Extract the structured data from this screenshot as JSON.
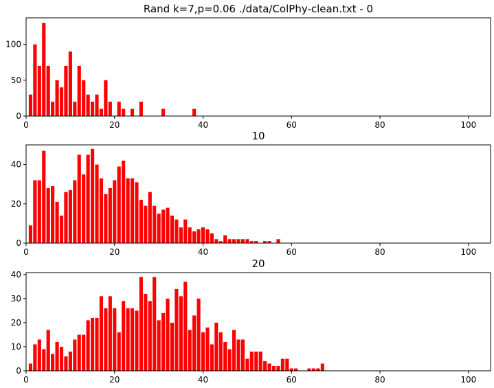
{
  "chart_data": [
    {
      "type": "bar",
      "title": "Rand k=7,p=0.06 ./data/ColPhy-clean.txt - 0",
      "xlabel": "",
      "ylabel": "",
      "xlim": [
        0,
        105
      ],
      "ylim": [
        0,
        137
      ],
      "xticks": [
        0,
        20,
        40,
        60,
        80,
        100
      ],
      "yticks": [
        0,
        50,
        100
      ],
      "bar_color": "#ff0000",
      "x": [
        1,
        2,
        3,
        4,
        5,
        6,
        7,
        8,
        9,
        10,
        11,
        12,
        13,
        14,
        15,
        16,
        17,
        18,
        19,
        20,
        21,
        22,
        23,
        24,
        25,
        26,
        27,
        28,
        29,
        30,
        31,
        32,
        33,
        34,
        35,
        36,
        37,
        38
      ],
      "values": [
        30,
        100,
        70,
        130,
        70,
        20,
        50,
        40,
        70,
        90,
        20,
        70,
        50,
        30,
        20,
        30,
        10,
        50,
        20,
        0,
        20,
        10,
        0,
        10,
        0,
        20,
        0,
        0,
        0,
        0,
        10,
        0,
        0,
        0,
        0,
        0,
        0,
        10
      ]
    },
    {
      "type": "bar",
      "title": "10",
      "xlabel": "",
      "ylabel": "",
      "xlim": [
        0,
        105
      ],
      "ylim": [
        0,
        50
      ],
      "xticks": [
        0,
        20,
        40,
        60,
        80,
        100
      ],
      "yticks": [
        0,
        20,
        40
      ],
      "bar_color": "#ff0000",
      "x": [
        1,
        2,
        3,
        4,
        5,
        6,
        7,
        8,
        9,
        10,
        11,
        12,
        13,
        14,
        15,
        16,
        17,
        18,
        19,
        20,
        21,
        22,
        23,
        24,
        25,
        26,
        27,
        28,
        29,
        30,
        31,
        32,
        33,
        34,
        35,
        36,
        37,
        38,
        39,
        40,
        41,
        42,
        43,
        44,
        45,
        46,
        47,
        48,
        49,
        50,
        51,
        52,
        53,
        54,
        55,
        56,
        57
      ],
      "values": [
        9,
        32,
        32,
        47,
        28,
        29,
        21,
        14,
        26,
        27,
        32,
        45,
        35,
        45,
        48,
        40,
        33,
        25,
        28,
        32,
        39,
        42,
        33,
        33,
        31,
        22,
        19,
        26,
        19,
        15,
        17,
        18,
        14,
        12,
        8,
        12,
        8,
        6,
        7,
        8,
        7,
        5,
        2,
        1,
        4,
        2,
        2,
        2,
        2,
        2,
        1,
        1,
        0,
        1,
        1,
        0,
        2
      ]
    },
    {
      "type": "bar",
      "title": "20",
      "xlabel": "",
      "ylabel": "",
      "xlim": [
        0,
        105
      ],
      "ylim": [
        0,
        40.8
      ],
      "xticks": [
        0,
        20,
        40,
        60,
        80,
        100
      ],
      "yticks": [
        0,
        10,
        20,
        30,
        40
      ],
      "bar_color": "#ff0000",
      "x": [
        1,
        2,
        3,
        4,
        5,
        6,
        7,
        8,
        9,
        10,
        11,
        12,
        13,
        14,
        15,
        16,
        17,
        18,
        19,
        20,
        21,
        22,
        23,
        24,
        25,
        26,
        27,
        28,
        29,
        30,
        31,
        32,
        33,
        34,
        35,
        36,
        37,
        38,
        39,
        40,
        41,
        42,
        43,
        44,
        45,
        46,
        47,
        48,
        49,
        50,
        51,
        52,
        53,
        54,
        55,
        56,
        57,
        58,
        59,
        60,
        61,
        62,
        63,
        64,
        65,
        66,
        67
      ],
      "values": [
        3,
        11,
        13,
        9,
        17,
        7,
        12,
        10,
        6,
        8,
        13,
        15,
        15,
        21,
        22,
        22,
        31,
        26,
        31,
        26,
        16,
        29,
        26,
        26,
        25,
        39,
        32,
        29,
        39,
        21,
        24,
        30,
        20,
        34,
        31,
        37,
        17,
        23,
        30,
        16,
        18,
        11,
        20,
        16,
        12,
        9,
        17,
        13,
        13,
        5,
        8,
        8,
        8,
        4,
        3,
        2,
        2,
        5,
        5,
        1,
        1,
        0,
        0,
        1,
        1,
        1,
        3
      ]
    }
  ]
}
